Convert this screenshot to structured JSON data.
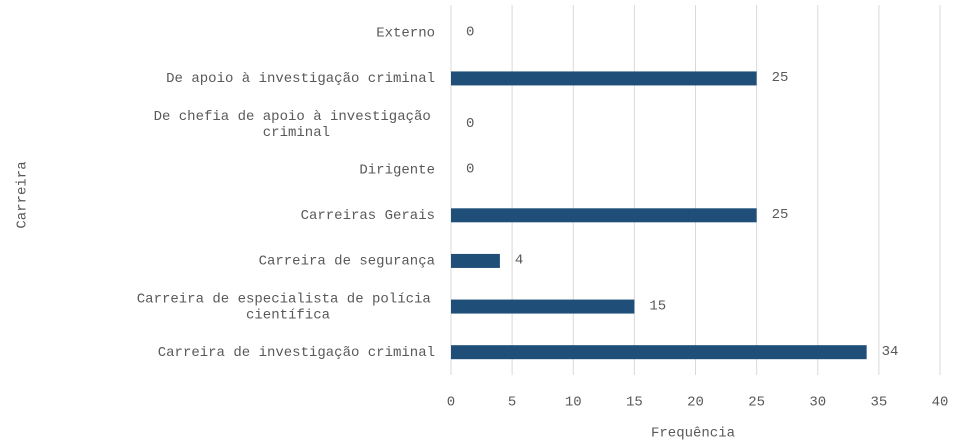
{
  "chart_data": {
    "type": "bar",
    "orientation": "horizontal",
    "categories": [
      "Externo",
      "De apoio à investigação criminal",
      "De chefia de apoio à investigação criminal",
      "Dirigente",
      "Carreiras Gerais",
      "Carreira de segurança",
      "Carreira de especialista de polícia científica",
      "Carreira de investigação criminal"
    ],
    "values": [
      0,
      25,
      0,
      0,
      25,
      4,
      15,
      34
    ],
    "color": "#1f4e79",
    "xlabel": "Frequência",
    "ylabel": "Carreira",
    "xlim": [
      0,
      40
    ],
    "xticks": [
      0,
      5,
      10,
      15,
      20,
      25,
      30,
      35,
      40
    ],
    "grid": true
  }
}
